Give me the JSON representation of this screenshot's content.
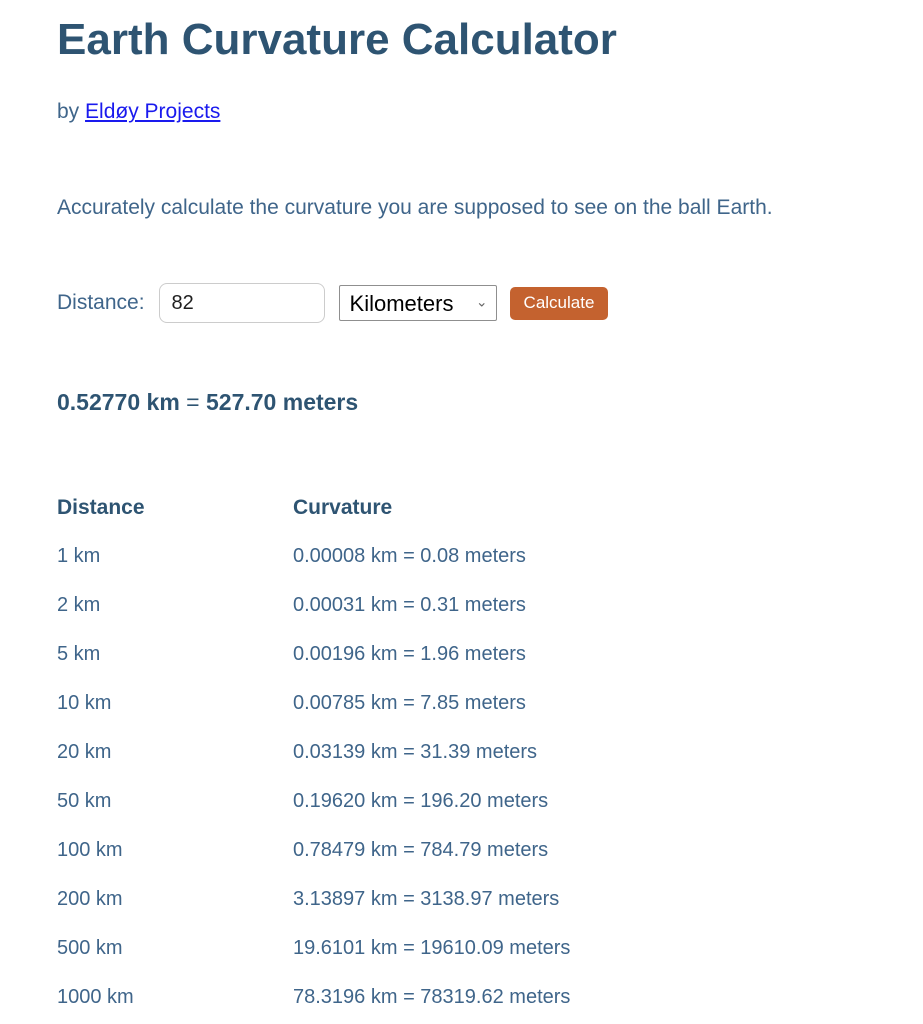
{
  "header": {
    "title": "Earth Curvature Calculator",
    "byline_prefix": "by",
    "author_link": "Eldøy Projects"
  },
  "intro": {
    "description": "Accurately calculate the curvature you are supposed to see on the ball Earth."
  },
  "form": {
    "distance_label": "Distance:",
    "distance_value": "82",
    "unit_selected": "Kilometers",
    "chevron_icon": "⌄",
    "calculate_label": "Calculate"
  },
  "result": {
    "km": "0.52770 km",
    "equals": "=",
    "meters": "527.70 meters"
  },
  "table": {
    "headers": [
      "Distance",
      "Curvature"
    ],
    "rows": [
      {
        "distance": "1 km",
        "curvature": "0.00008 km = 0.08 meters"
      },
      {
        "distance": "2 km",
        "curvature": "0.00031 km = 0.31 meters"
      },
      {
        "distance": "5 km",
        "curvature": "0.00196 km = 1.96 meters"
      },
      {
        "distance": "10 km",
        "curvature": "0.00785 km = 7.85 meters"
      },
      {
        "distance": "20 km",
        "curvature": "0.03139 km = 31.39 meters"
      },
      {
        "distance": "50 km",
        "curvature": "0.19620 km = 196.20 meters"
      },
      {
        "distance": "100 km",
        "curvature": "0.78479 km = 784.79 meters"
      },
      {
        "distance": "200 km",
        "curvature": "3.13897 km = 3138.97 meters"
      },
      {
        "distance": "500 km",
        "curvature": "19.6101 km = 19610.09 meters"
      },
      {
        "distance": "1000 km",
        "curvature": "78.3196 km = 78319.62 meters"
      }
    ]
  },
  "colors": {
    "heading": "#2e5472",
    "body_text": "#3f658a",
    "link": "#1a1aee",
    "button_bg": "#c4622f",
    "button_text": "#ffffff"
  }
}
